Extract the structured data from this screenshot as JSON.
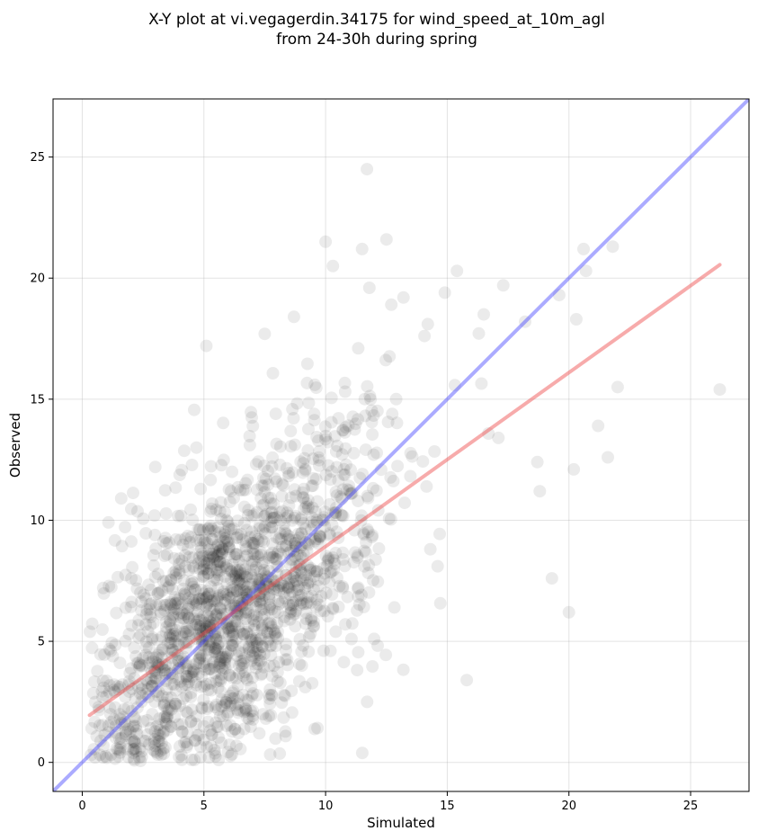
{
  "chart_data": {
    "type": "scatter",
    "title_line1": "X-Y plot at vi.vegagerdin.34175 for wind_speed_at_10m_agl",
    "title_line2": "from 24-30h during spring",
    "xlabel": "Simulated",
    "ylabel": "Observed",
    "xlim": [
      -1.2,
      27.4
    ],
    "ylim": [
      -1.2,
      27.4
    ],
    "xticks": [
      0,
      5,
      10,
      15,
      20,
      25
    ],
    "yticks": [
      0,
      5,
      10,
      15,
      20,
      25
    ],
    "grid": true,
    "point_color": "#000000",
    "identity_line_color": "#4444ff",
    "fit_line_color": "#ee4444",
    "fit_line": {
      "x": [
        0.3,
        26.2
      ],
      "y": [
        1.95,
        20.55
      ]
    },
    "outlier_points": {
      "x": [
        11.7,
        10.3,
        10.0,
        12.5,
        11.5,
        5.1,
        15.4,
        20.6,
        21.8,
        26.2,
        20.0,
        19.3,
        15.8,
        17.3,
        18.2,
        20.3,
        16.5,
        14.9,
        13.2,
        12.7,
        11.8,
        14.2,
        21.6,
        22.0,
        20.7,
        19.6,
        18.8,
        3.0,
        1.6,
        7.5,
        8.7,
        12.9,
        17.1,
        18.7,
        20.2,
        21.2
      ],
      "y": [
        24.5,
        20.5,
        21.5,
        21.6,
        21.2,
        17.2,
        20.3,
        21.2,
        21.3,
        15.4,
        6.2,
        7.6,
        3.4,
        19.7,
        18.2,
        18.3,
        18.5,
        19.4,
        19.2,
        18.9,
        19.6,
        18.1,
        12.6,
        15.5,
        20.3,
        19.3,
        11.2,
        12.2,
        10.9,
        17.7,
        18.4,
        15.0,
        13.4,
        12.4,
        12.1,
        13.9
      ]
    },
    "cluster": {
      "count": 1700,
      "x_center": 6.0,
      "x_spread": 3.2,
      "slope": 0.72,
      "intercept": 1.75,
      "y_noise": 2.9
    }
  }
}
